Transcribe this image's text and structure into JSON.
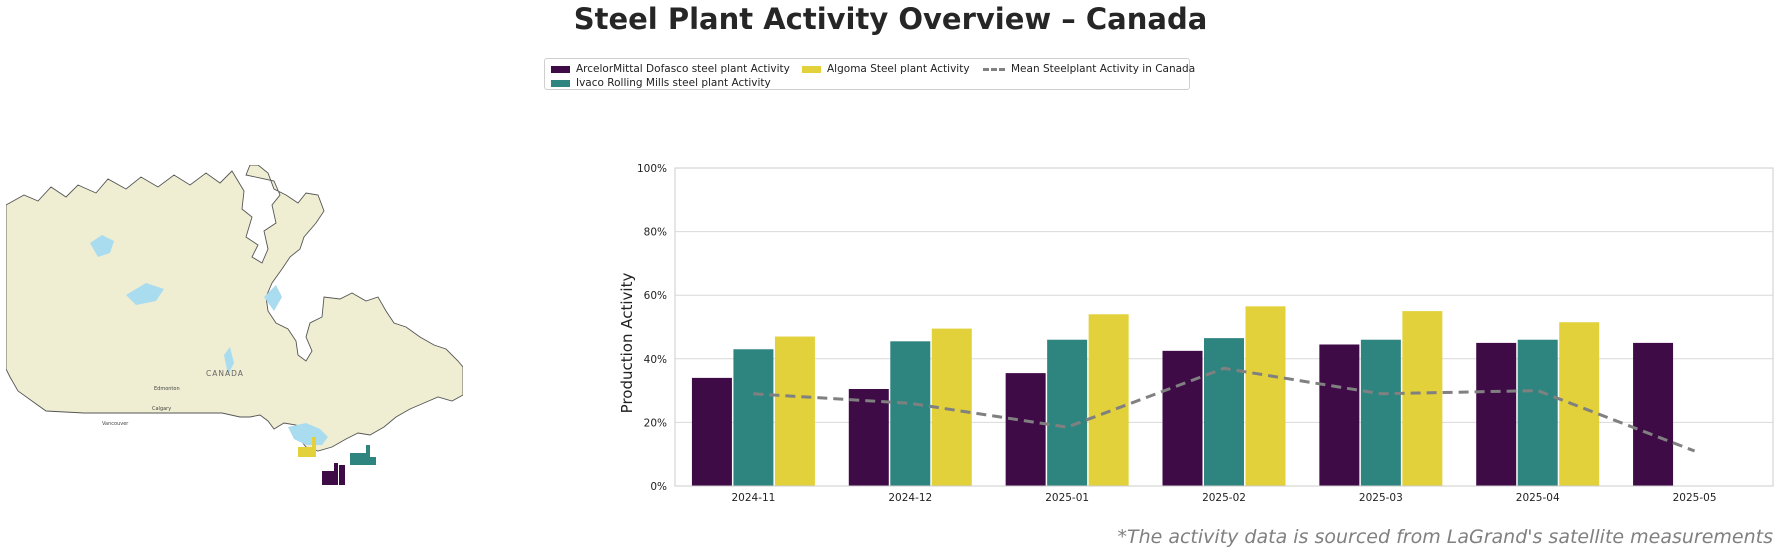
{
  "title": "Steel Plant Activity Overview – Canada",
  "footnote": "*The activity data is sourced from LaGrand's satellite measurements",
  "legend": {
    "items": [
      {
        "label": "ArcelorMittal Dofasco steel plant Activity",
        "color": "#3f0b47",
        "kind": "bar"
      },
      {
        "label": "Ivaco Rolling Mills steel plant Activity",
        "color": "#2e8580",
        "kind": "bar"
      },
      {
        "label": "Algoma Steel plant Activity",
        "color": "#e2d13a",
        "kind": "bar"
      },
      {
        "label": "Mean Steelplant Activity in Canada",
        "color": "#808080",
        "kind": "dashed-line"
      }
    ]
  },
  "map": {
    "labels": [
      "CANADA",
      "Edmonton",
      "Calgary",
      "Vancouver"
    ],
    "land_color": "#efeed3",
    "water_color": "#a9dcef"
  },
  "chart_data": {
    "type": "bar",
    "categories": [
      "2024-11",
      "2024-12",
      "2025-01",
      "2025-02",
      "2025-03",
      "2025-04",
      "2025-05"
    ],
    "series": [
      {
        "name": "ArcelorMittal Dofasco steel plant Activity",
        "color": "#3f0b47",
        "values": [
          34,
          30.5,
          35.5,
          42.5,
          44.5,
          45,
          45
        ]
      },
      {
        "name": "Ivaco Rolling Mills steel plant Activity",
        "color": "#2e8580",
        "values": [
          43,
          45.5,
          46,
          46.5,
          46,
          46,
          null
        ]
      },
      {
        "name": "Algoma Steel plant Activity",
        "color": "#e2d13a",
        "values": [
          47,
          49.5,
          54,
          56.5,
          55,
          51.5,
          null
        ]
      }
    ],
    "line_series": {
      "name": "Mean Steelplant Activity in Canada",
      "color": "#808080",
      "style": "dashed",
      "values": [
        29,
        26,
        18.5,
        37,
        29,
        30,
        11
      ]
    },
    "ylabel": "Production Activity",
    "ylim": [
      0,
      100
    ],
    "yticks": [
      "0%",
      "20%",
      "40%",
      "60%",
      "80%",
      "100%"
    ],
    "grid": true
  }
}
